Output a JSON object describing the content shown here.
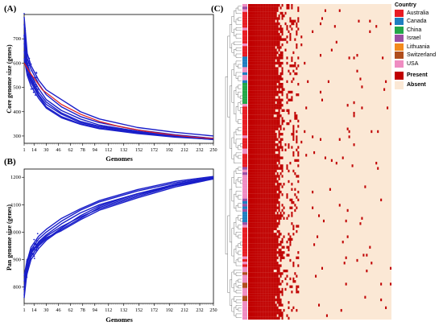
{
  "panels": {
    "a": {
      "label": "(A)"
    },
    "b": {
      "label": "(B)"
    },
    "c": {
      "label": "(C)"
    }
  },
  "colors": {
    "curve": "#1a1fc9",
    "fit": "#e02020",
    "present": "#c00000",
    "absent": "#fbe8d5"
  },
  "legend": {
    "title": "Country",
    "countries": [
      {
        "label": "Australia",
        "color": "#e81c24"
      },
      {
        "label": "Canada",
        "color": "#1f7fc0"
      },
      {
        "label": "China",
        "color": "#23a648"
      },
      {
        "label": "Israel",
        "color": "#9b4fa3"
      },
      {
        "label": "Lithuania",
        "color": "#f38a1c"
      },
      {
        "label": "Switzerland",
        "color": "#b04e1c"
      },
      {
        "label": "USA",
        "color": "#ef8cc1"
      }
    ],
    "states": [
      {
        "label": "Present",
        "color": "#c00000"
      },
      {
        "label": "Absent",
        "color": "#fbe8d5"
      }
    ]
  },
  "chart_data": [
    {
      "type": "line",
      "panel": "A",
      "title": "",
      "xlabel": "Genomes",
      "ylabel": "Core genome size (genes)",
      "x_ticks": [
        1,
        14,
        30,
        46,
        62,
        78,
        94,
        112,
        132,
        152,
        172,
        192,
        212,
        232,
        250
      ],
      "y_ticks": [
        300,
        400,
        500,
        600,
        700
      ],
      "xlim": [
        1,
        250
      ],
      "ylim": [
        270,
        800
      ],
      "series": [
        {
          "x": [
            1,
            5,
            10,
            20,
            30,
            50,
            75,
            100,
            150,
            200,
            250
          ],
          "y": [
            790,
            640,
            590,
            530,
            490,
            450,
            400,
            370,
            335,
            315,
            300
          ]
        },
        {
          "x": [
            1,
            5,
            10,
            20,
            30,
            50,
            75,
            100,
            150,
            200,
            250
          ],
          "y": [
            760,
            620,
            575,
            515,
            470,
            420,
            380,
            355,
            325,
            305,
            290
          ]
        },
        {
          "x": [
            1,
            5,
            10,
            20,
            30,
            50,
            75,
            100,
            150,
            200,
            250
          ],
          "y": [
            720,
            600,
            550,
            495,
            450,
            405,
            370,
            345,
            320,
            300,
            288
          ]
        },
        {
          "x": [
            1,
            5,
            10,
            20,
            30,
            50,
            75,
            100,
            150,
            200,
            250
          ],
          "y": [
            700,
            590,
            540,
            480,
            440,
            395,
            360,
            340,
            318,
            298,
            285
          ]
        },
        {
          "x": [
            1,
            5,
            10,
            20,
            30,
            50,
            75,
            100,
            150,
            200,
            250
          ],
          "y": [
            680,
            575,
            530,
            470,
            430,
            390,
            355,
            338,
            315,
            300,
            290
          ]
        },
        {
          "x": [
            1,
            5,
            10,
            20,
            30,
            50,
            75,
            100,
            150,
            200,
            250
          ],
          "y": [
            650,
            560,
            520,
            465,
            420,
            380,
            350,
            333,
            312,
            297,
            287
          ]
        },
        {
          "x": [
            1,
            5,
            10,
            20,
            30,
            50,
            75,
            100,
            150,
            200,
            250
          ],
          "y": [
            620,
            550,
            505,
            455,
            415,
            375,
            348,
            330,
            310,
            295,
            286
          ]
        }
      ],
      "fit": {
        "x": [
          1,
          10,
          25,
          50,
          75,
          100,
          125,
          150,
          175,
          200,
          225,
          250
        ],
        "y": [
          600,
          555,
          490,
          430,
          390,
          360,
          340,
          325,
          313,
          303,
          295,
          290
        ]
      }
    },
    {
      "type": "line",
      "panel": "B",
      "title": "",
      "xlabel": "Genomes",
      "ylabel": "Pan genome size (genes)",
      "x_ticks": [
        1,
        14,
        30,
        46,
        62,
        78,
        94,
        112,
        132,
        152,
        172,
        192,
        212,
        232,
        250
      ],
      "y_ticks": [
        800,
        900,
        1000,
        1100,
        1200
      ],
      "xlim": [
        1,
        250
      ],
      "ylim": [
        740,
        1230
      ],
      "series": [
        {
          "x": [
            1,
            5,
            10,
            20,
            30,
            50,
            75,
            100,
            150,
            200,
            250
          ],
          "y": [
            760,
            860,
            920,
            965,
            990,
            1030,
            1070,
            1100,
            1140,
            1170,
            1195
          ]
        },
        {
          "x": [
            1,
            5,
            10,
            20,
            30,
            50,
            75,
            100,
            150,
            200,
            250
          ],
          "y": [
            770,
            880,
            935,
            975,
            1000,
            1040,
            1080,
            1110,
            1150,
            1180,
            1200
          ]
        },
        {
          "x": [
            1,
            5,
            10,
            20,
            30,
            50,
            75,
            100,
            150,
            200,
            250
          ],
          "y": [
            790,
            895,
            945,
            985,
            1010,
            1050,
            1085,
            1115,
            1155,
            1185,
            1203
          ]
        },
        {
          "x": [
            1,
            5,
            10,
            20,
            30,
            50,
            75,
            100,
            150,
            200,
            250
          ],
          "y": [
            800,
            870,
            910,
            950,
            975,
            1015,
            1060,
            1095,
            1140,
            1175,
            1198
          ]
        },
        {
          "x": [
            1,
            5,
            10,
            20,
            30,
            50,
            75,
            100,
            150,
            200,
            250
          ],
          "y": [
            820,
            890,
            930,
            960,
            985,
            1020,
            1055,
            1085,
            1130,
            1170,
            1196
          ]
        },
        {
          "x": [
            1,
            5,
            10,
            20,
            30,
            50,
            75,
            100,
            150,
            200,
            250
          ],
          "y": [
            840,
            900,
            925,
            955,
            980,
            1005,
            1045,
            1080,
            1125,
            1165,
            1194
          ]
        },
        {
          "x": [
            1,
            5,
            10,
            20,
            30,
            50,
            75,
            100,
            150,
            200,
            250
          ],
          "y": [
            790,
            850,
            900,
            940,
            970,
            1010,
            1050,
            1090,
            1135,
            1172,
            1197
          ]
        }
      ]
    }
  ]
}
